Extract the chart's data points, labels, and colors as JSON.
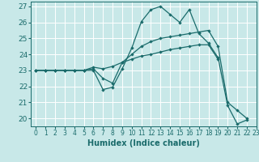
{
  "title": "",
  "xlabel": "Humidex (Indice chaleur)",
  "xlim": [
    -0.5,
    23
  ],
  "ylim": [
    19.5,
    27.3
  ],
  "yticks": [
    20,
    21,
    22,
    23,
    24,
    25,
    26,
    27
  ],
  "xticks": [
    0,
    1,
    2,
    3,
    4,
    5,
    6,
    7,
    8,
    9,
    10,
    11,
    12,
    13,
    14,
    15,
    16,
    17,
    18,
    19,
    20,
    21,
    22,
    23
  ],
  "bg_color": "#c8e8e8",
  "line_color": "#1a6b6b",
  "grid_color": "#ffffff",
  "lines": [
    {
      "x": [
        0,
        1,
        2,
        3,
        4,
        5,
        6,
        7,
        8,
        9,
        10,
        11,
        12,
        13,
        14,
        15,
        16,
        17,
        18,
        19,
        20,
        21,
        22
      ],
      "y": [
        23,
        23,
        23,
        23,
        23,
        23,
        23,
        21.8,
        21.95,
        23.1,
        24.4,
        26.05,
        26.8,
        27.0,
        26.5,
        26.0,
        26.8,
        25.3,
        24.7,
        23.8,
        20.8,
        19.65,
        19.9
      ]
    },
    {
      "x": [
        0,
        1,
        2,
        3,
        4,
        5,
        6,
        7,
        8,
        9,
        10,
        11,
        12,
        13,
        14,
        15,
        16,
        17,
        18,
        19,
        20,
        21,
        22
      ],
      "y": [
        23,
        23,
        23,
        23,
        23,
        23,
        23.1,
        22.5,
        22.2,
        23.5,
        24.0,
        24.5,
        24.8,
        25.0,
        25.1,
        25.2,
        25.3,
        25.4,
        25.5,
        24.5,
        21.0,
        20.5,
        20.0
      ]
    },
    {
      "x": [
        0,
        1,
        2,
        3,
        4,
        5,
        6,
        7,
        8,
        9,
        10,
        11,
        12,
        13,
        14,
        15,
        16,
        17,
        18,
        19
      ],
      "y": [
        23,
        23,
        23,
        23,
        23,
        23,
        23.2,
        23.1,
        23.25,
        23.5,
        23.7,
        23.9,
        24.0,
        24.15,
        24.3,
        24.4,
        24.5,
        24.6,
        24.6,
        23.7
      ]
    }
  ],
  "xlabel_fontsize": 7,
  "tick_fontsize": 5.5,
  "ytick_fontsize": 6.5
}
